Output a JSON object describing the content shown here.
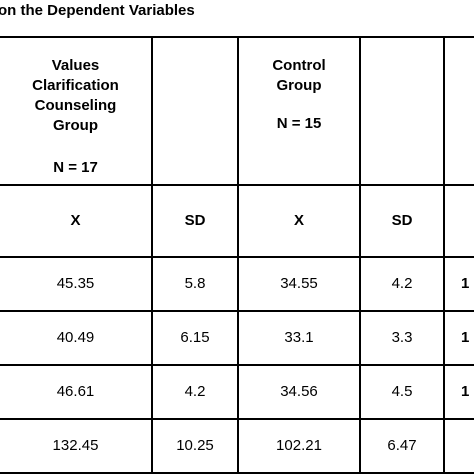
{
  "caption": "on the Dependent Variables",
  "groups": {
    "values": {
      "name_lines": [
        "Values",
        "Clarification",
        "Counseling",
        "Group"
      ],
      "n": "N = 17"
    },
    "control": {
      "name_lines": [
        "Control",
        "Group"
      ],
      "n": "N = 15"
    }
  },
  "subheaders": [
    "X",
    "SD",
    "X",
    "SD"
  ],
  "rows": [
    {
      "values_x": "45.35",
      "values_sd": "5.8",
      "control_x": "34.55",
      "control_sd": "4.2",
      "edge": "1"
    },
    {
      "values_x": "40.49",
      "values_sd": "6.15",
      "control_x": "33.1",
      "control_sd": "3.3",
      "edge": "1"
    },
    {
      "values_x": "46.61",
      "values_sd": "4.2",
      "control_x": "34.56",
      "control_sd": "4.5",
      "edge": "1"
    },
    {
      "values_x": "132.45",
      "values_sd": "10.25",
      "control_x": "102.21",
      "control_sd": "6.47",
      "edge": ""
    }
  ]
}
